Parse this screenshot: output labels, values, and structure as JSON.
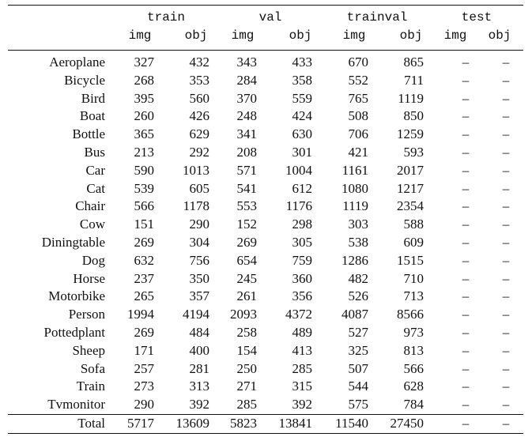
{
  "table": {
    "groups": [
      "train",
      "val",
      "trainval",
      "test"
    ],
    "subheaders": [
      "img",
      "obj",
      "img",
      "obj",
      "img",
      "obj",
      "img",
      "obj"
    ],
    "rows": [
      [
        "Aeroplane",
        327,
        432,
        343,
        433,
        670,
        865,
        "–",
        "–"
      ],
      [
        "Bicycle",
        268,
        353,
        284,
        358,
        552,
        711,
        "–",
        "–"
      ],
      [
        "Bird",
        395,
        560,
        370,
        559,
        765,
        1119,
        "–",
        "–"
      ],
      [
        "Boat",
        260,
        426,
        248,
        424,
        508,
        850,
        "–",
        "–"
      ],
      [
        "Bottle",
        365,
        629,
        341,
        630,
        706,
        1259,
        "–",
        "–"
      ],
      [
        "Bus",
        213,
        292,
        208,
        301,
        421,
        593,
        "–",
        "–"
      ],
      [
        "Car",
        590,
        1013,
        571,
        1004,
        1161,
        2017,
        "–",
        "–"
      ],
      [
        "Cat",
        539,
        605,
        541,
        612,
        1080,
        1217,
        "–",
        "–"
      ],
      [
        "Chair",
        566,
        1178,
        553,
        1176,
        1119,
        2354,
        "–",
        "–"
      ],
      [
        "Cow",
        151,
        290,
        152,
        298,
        303,
        588,
        "–",
        "–"
      ],
      [
        "Diningtable",
        269,
        304,
        269,
        305,
        538,
        609,
        "–",
        "–"
      ],
      [
        "Dog",
        632,
        756,
        654,
        759,
        1286,
        1515,
        "–",
        "–"
      ],
      [
        "Horse",
        237,
        350,
        245,
        360,
        482,
        710,
        "–",
        "–"
      ],
      [
        "Motorbike",
        265,
        357,
        261,
        356,
        526,
        713,
        "–",
        "–"
      ],
      [
        "Person",
        1994,
        4194,
        2093,
        4372,
        4087,
        8566,
        "–",
        "–"
      ],
      [
        "Pottedplant",
        269,
        484,
        258,
        489,
        527,
        973,
        "–",
        "–"
      ],
      [
        "Sheep",
        171,
        400,
        154,
        413,
        325,
        813,
        "–",
        "–"
      ],
      [
        "Sofa",
        257,
        281,
        250,
        285,
        507,
        566,
        "–",
        "–"
      ],
      [
        "Train",
        273,
        313,
        271,
        315,
        544,
        628,
        "–",
        "–"
      ],
      [
        "Tvmonitor",
        290,
        392,
        285,
        392,
        575,
        784,
        "–",
        "–"
      ]
    ],
    "total": [
      "Total",
      5717,
      13609,
      5823,
      13841,
      11540,
      27450,
      "–",
      "–"
    ]
  }
}
